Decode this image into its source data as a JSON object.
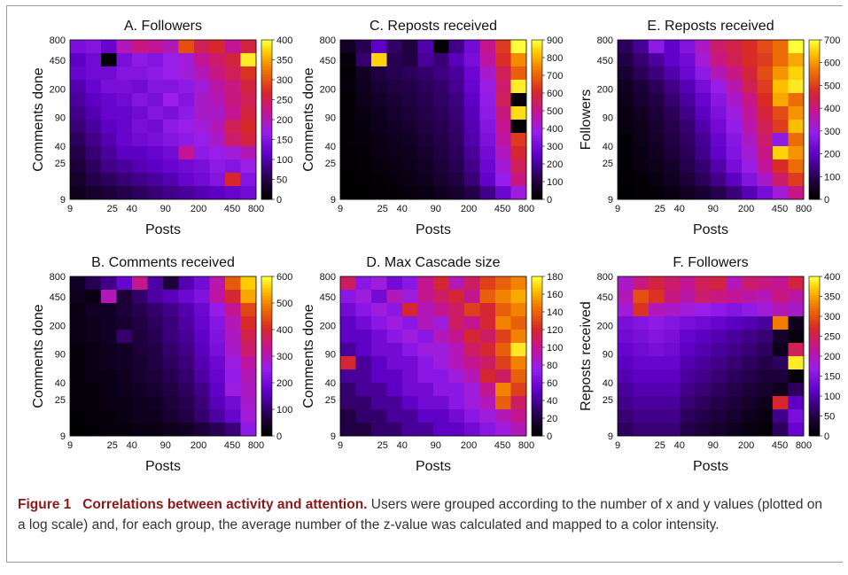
{
  "caption": {
    "label": "Figure 1",
    "title": "Correlations between activity and attention.",
    "text": "Users were grouped according to the number of x and y values (plotted on a log scale) and, for each group, the average number of the z-value was calculated and mapped to a color intensity."
  },
  "chart_data": [
    {
      "id": "A",
      "type": "heatmap",
      "title": "A. Followers",
      "xlabel": "Posts",
      "ylabel": "Comments done",
      "scale": "log",
      "xticks": [
        "9",
        "25",
        "40",
        "90",
        "200",
        "450",
        "800"
      ],
      "yticks": [
        "9",
        "25",
        "40",
        "90",
        "200",
        "450",
        "800"
      ],
      "colorbar": {
        "min": 0,
        "max": 400,
        "ticks": [
          0,
          50,
          100,
          150,
          200,
          250,
          300,
          350,
          400
        ]
      },
      "cells": [
        [
          140,
          150,
          120,
          200,
          230,
          220,
          200,
          300,
          250,
          270,
          220,
          260
        ],
        [
          110,
          130,
          5,
          140,
          160,
          150,
          170,
          180,
          220,
          240,
          260,
          390
        ],
        [
          120,
          130,
          130,
          150,
          150,
          160,
          170,
          180,
          200,
          230,
          250,
          280
        ],
        [
          100,
          120,
          140,
          140,
          130,
          150,
          150,
          160,
          180,
          210,
          230,
          260
        ],
        [
          90,
          110,
          120,
          130,
          150,
          140,
          170,
          150,
          190,
          200,
          230,
          250
        ],
        [
          80,
          100,
          120,
          120,
          130,
          150,
          140,
          160,
          190,
          190,
          220,
          260
        ],
        [
          70,
          90,
          110,
          120,
          140,
          130,
          160,
          170,
          180,
          200,
          250,
          270
        ],
        [
          60,
          80,
          100,
          120,
          130,
          140,
          150,
          160,
          170,
          190,
          240,
          260
        ],
        [
          50,
          70,
          90,
          110,
          110,
          120,
          130,
          220,
          160,
          170,
          180,
          200
        ],
        [
          40,
          60,
          80,
          90,
          100,
          110,
          120,
          130,
          140,
          160,
          150,
          170
        ],
        [
          30,
          50,
          60,
          70,
          80,
          90,
          100,
          120,
          130,
          150,
          270,
          150
        ],
        [
          20,
          30,
          40,
          50,
          60,
          70,
          80,
          90,
          100,
          110,
          120,
          130
        ]
      ]
    },
    {
      "id": "B",
      "type": "heatmap",
      "title": "B. Comments received",
      "xlabel": "Posts",
      "ylabel": "Comments done",
      "scale": "log",
      "xticks": [
        "9",
        "25",
        "40",
        "90",
        "200",
        "450",
        "800"
      ],
      "yticks": [
        "9",
        "25",
        "40",
        "90",
        "200",
        "450",
        "800"
      ],
      "colorbar": {
        "min": 0,
        "max": 600,
        "ticks": [
          0,
          100,
          200,
          300,
          400,
          500,
          600
        ]
      },
      "cells": [
        [
          40,
          80,
          120,
          180,
          340,
          140,
          60,
          150,
          200,
          310,
          460,
          560
        ],
        [
          30,
          20,
          300,
          60,
          100,
          140,
          160,
          190,
          220,
          320,
          400,
          530
        ],
        [
          20,
          40,
          40,
          60,
          80,
          100,
          120,
          150,
          190,
          250,
          330,
          440
        ],
        [
          20,
          30,
          40,
          50,
          70,
          90,
          110,
          140,
          180,
          230,
          300,
          410
        ],
        [
          20,
          30,
          40,
          100,
          60,
          80,
          110,
          130,
          170,
          220,
          290,
          380
        ],
        [
          10,
          20,
          30,
          40,
          60,
          70,
          100,
          120,
          160,
          210,
          280,
          360
        ],
        [
          10,
          20,
          30,
          40,
          50,
          70,
          90,
          110,
          150,
          190,
          260,
          320
        ],
        [
          10,
          20,
          20,
          30,
          50,
          60,
          80,
          100,
          140,
          180,
          250,
          300
        ],
        [
          10,
          10,
          20,
          30,
          40,
          50,
          70,
          90,
          120,
          170,
          260,
          290
        ],
        [
          10,
          10,
          20,
          20,
          30,
          40,
          60,
          80,
          110,
          160,
          200,
          280
        ],
        [
          5,
          10,
          10,
          20,
          30,
          30,
          50,
          70,
          100,
          140,
          180,
          270
        ],
        [
          0,
          5,
          10,
          10,
          20,
          20,
          30,
          40,
          60,
          80,
          110,
          240
        ]
      ]
    },
    {
      "id": "C",
      "type": "heatmap",
      "title": "C. Reposts received",
      "xlabel": "Posts",
      "ylabel": "Comments done",
      "scale": "log",
      "xticks": [
        "9",
        "25",
        "40",
        "90",
        "200",
        "450",
        "800"
      ],
      "yticks": [
        "9",
        "25",
        "40",
        "90",
        "200",
        "450",
        "800"
      ],
      "colorbar": {
        "min": 0,
        "max": 900,
        "ticks": [
          0,
          100,
          200,
          300,
          400,
          500,
          600,
          700,
          800,
          900
        ]
      },
      "cells": [
        [
          60,
          120,
          250,
          140,
          100,
          220,
          10,
          180,
          300,
          500,
          640,
          900
        ],
        [
          20,
          150,
          850,
          120,
          100,
          200,
          160,
          240,
          310,
          480,
          620,
          760
        ],
        [
          10,
          60,
          100,
          120,
          130,
          150,
          170,
          200,
          280,
          420,
          560,
          700
        ],
        [
          20,
          50,
          80,
          100,
          110,
          130,
          150,
          190,
          270,
          390,
          540,
          880
        ],
        [
          10,
          40,
          60,
          80,
          100,
          120,
          140,
          170,
          250,
          370,
          560,
          20
        ],
        [
          10,
          30,
          50,
          70,
          90,
          110,
          130,
          160,
          240,
          360,
          520,
          860
        ],
        [
          10,
          20,
          40,
          60,
          70,
          100,
          120,
          150,
          230,
          340,
          500,
          10
        ],
        [
          10,
          20,
          30,
          50,
          60,
          90,
          110,
          140,
          220,
          320,
          480,
          640
        ],
        [
          5,
          10,
          30,
          40,
          50,
          70,
          100,
          130,
          200,
          300,
          440,
          600
        ],
        [
          5,
          10,
          20,
          30,
          40,
          60,
          90,
          120,
          180,
          280,
          410,
          560
        ],
        [
          0,
          5,
          10,
          20,
          30,
          50,
          70,
          100,
          160,
          260,
          380,
          520
        ],
        [
          0,
          0,
          5,
          10,
          20,
          30,
          50,
          70,
          110,
          180,
          280,
          400
        ]
      ]
    },
    {
      "id": "D",
      "type": "heatmap",
      "title": "D. Max Cascade size",
      "xlabel": "Posts",
      "ylabel": "Comments done",
      "scale": "log",
      "xticks": [
        "9",
        "25",
        "40",
        "90",
        "200",
        "450",
        "800"
      ],
      "yticks": [
        "9",
        "25",
        "40",
        "90",
        "200",
        "450",
        "800"
      ],
      "colorbar": {
        "min": 0,
        "max": 180,
        "ticks": [
          0,
          20,
          40,
          60,
          80,
          100,
          120,
          140,
          160,
          180
        ]
      },
      "cells": [
        [
          110,
          70,
          80,
          60,
          70,
          100,
          120,
          90,
          110,
          130,
          140,
          150
        ],
        [
          70,
          80,
          60,
          90,
          80,
          100,
          110,
          120,
          100,
          140,
          150,
          160
        ],
        [
          60,
          70,
          80,
          70,
          120,
          90,
          100,
          110,
          130,
          120,
          140,
          150
        ],
        [
          50,
          60,
          70,
          80,
          70,
          90,
          80,
          110,
          100,
          120,
          150,
          140
        ],
        [
          50,
          50,
          60,
          70,
          80,
          70,
          90,
          100,
          120,
          110,
          130,
          150
        ],
        [
          40,
          50,
          60,
          60,
          70,
          80,
          80,
          90,
          110,
          120,
          140,
          175
        ],
        [
          120,
          40,
          50,
          60,
          60,
          70,
          80,
          90,
          100,
          110,
          130,
          150
        ],
        [
          40,
          40,
          50,
          50,
          60,
          70,
          70,
          80,
          90,
          120,
          110,
          140
        ],
        [
          30,
          40,
          40,
          50,
          60,
          60,
          70,
          70,
          80,
          100,
          150,
          130
        ],
        [
          30,
          30,
          40,
          40,
          50,
          60,
          60,
          70,
          80,
          90,
          140,
          110
        ],
        [
          20,
          30,
          30,
          40,
          40,
          50,
          50,
          60,
          70,
          80,
          90,
          100
        ],
        [
          20,
          20,
          30,
          30,
          40,
          40,
          50,
          50,
          60,
          70,
          80,
          90
        ]
      ]
    },
    {
      "id": "E",
      "type": "heatmap",
      "title": "E. Reposts received",
      "xlabel": "Posts",
      "ylabel": "Followers",
      "scale": "log",
      "xticks": [
        "9",
        "25",
        "40",
        "90",
        "200",
        "450",
        "800"
      ],
      "yticks": [
        "9",
        "25",
        "40",
        "90",
        "200",
        "450",
        "800"
      ],
      "colorbar": {
        "min": 0,
        "max": 700,
        "ticks": [
          0,
          100,
          200,
          300,
          400,
          500,
          600,
          700
        ]
      },
      "cells": [
        [
          100,
          150,
          280,
          200,
          260,
          340,
          420,
          450,
          480,
          520,
          560,
          700
        ],
        [
          80,
          120,
          160,
          200,
          230,
          320,
          400,
          440,
          480,
          500,
          560,
          620
        ],
        [
          60,
          100,
          130,
          170,
          220,
          280,
          350,
          400,
          460,
          520,
          600,
          660
        ],
        [
          40,
          70,
          100,
          140,
          180,
          240,
          300,
          360,
          440,
          500,
          640,
          680
        ],
        [
          30,
          60,
          80,
          120,
          160,
          210,
          270,
          330,
          400,
          480,
          620,
          560
        ],
        [
          20,
          40,
          70,
          100,
          140,
          190,
          250,
          310,
          380,
          460,
          520,
          600
        ],
        [
          20,
          30,
          60,
          90,
          120,
          170,
          230,
          290,
          360,
          440,
          500,
          640
        ],
        [
          10,
          30,
          50,
          80,
          110,
          150,
          210,
          270,
          340,
          420,
          280,
          560
        ],
        [
          10,
          20,
          40,
          70,
          100,
          140,
          200,
          260,
          320,
          400,
          660,
          600
        ],
        [
          10,
          20,
          30,
          50,
          90,
          120,
          170,
          240,
          300,
          380,
          480,
          560
        ],
        [
          5,
          10,
          20,
          40,
          70,
          100,
          140,
          190,
          260,
          330,
          420,
          500
        ],
        [
          0,
          5,
          10,
          20,
          40,
          60,
          90,
          130,
          180,
          240,
          320,
          400
        ]
      ]
    },
    {
      "id": "F",
      "type": "heatmap",
      "title": "F. Followers",
      "xlabel": "Posts",
      "ylabel": "Reposts received",
      "scale": "log",
      "xticks": [
        "9",
        "25",
        "40",
        "90",
        "200",
        "450",
        "800"
      ],
      "yticks": [
        "9",
        "25",
        "40",
        "90",
        "200",
        "450",
        "800"
      ],
      "colorbar": {
        "min": 0,
        "max": 400,
        "ticks": [
          0,
          50,
          100,
          150,
          200,
          250,
          300,
          350,
          400
        ]
      },
      "cells": [
        [
          190,
          230,
          260,
          240,
          220,
          250,
          260,
          200,
          240,
          230,
          220,
          260
        ],
        [
          200,
          300,
          280,
          230,
          210,
          240,
          230,
          220,
          210,
          200,
          230,
          210
        ],
        [
          180,
          280,
          200,
          190,
          180,
          170,
          160,
          150,
          160,
          180,
          200,
          190
        ],
        [
          140,
          150,
          160,
          150,
          140,
          130,
          120,
          110,
          100,
          90,
          330,
          20
        ],
        [
          130,
          140,
          150,
          140,
          120,
          110,
          100,
          90,
          80,
          70,
          30,
          10
        ],
        [
          120,
          130,
          140,
          130,
          110,
          100,
          90,
          80,
          70,
          60,
          20,
          250
        ],
        [
          110,
          120,
          120,
          120,
          100,
          90,
          80,
          70,
          60,
          50,
          60,
          390
        ],
        [
          100,
          110,
          110,
          110,
          90,
          80,
          70,
          60,
          50,
          40,
          40,
          10
        ],
        [
          90,
          100,
          100,
          100,
          80,
          70,
          60,
          50,
          40,
          30,
          20,
          60
        ],
        [
          80,
          90,
          90,
          90,
          70,
          60,
          50,
          40,
          30,
          20,
          270,
          110
        ],
        [
          70,
          80,
          80,
          80,
          60,
          50,
          40,
          30,
          20,
          10,
          80,
          140
        ],
        [
          60,
          70,
          70,
          70,
          50,
          40,
          30,
          20,
          10,
          5,
          60,
          120
        ]
      ]
    }
  ]
}
